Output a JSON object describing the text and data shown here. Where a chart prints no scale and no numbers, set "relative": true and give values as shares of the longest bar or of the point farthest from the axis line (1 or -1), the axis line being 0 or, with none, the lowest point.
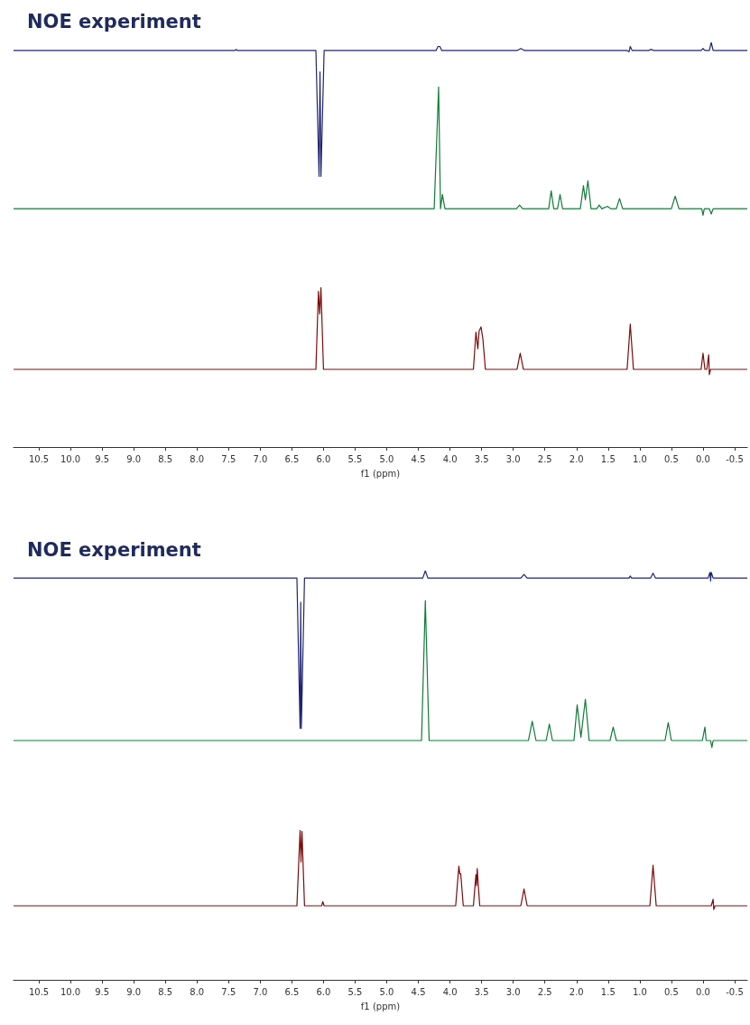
{
  "chart_data": [
    {
      "type": "line",
      "title": "NOE experiment",
      "relative": true,
      "xlim": [
        10.9,
        -0.7
      ],
      "xlabel": "f1 (ppm)",
      "xticks": [
        10.5,
        {
          "value": 10,
          "label": "10.0"
        },
        9.5,
        {
          "value": 9,
          "label": "9.0"
        },
        8.5,
        {
          "value": 8,
          "label": "8.0"
        },
        7.5,
        {
          "value": 7,
          "label": "7.0"
        },
        6.5,
        {
          "value": 6,
          "label": "6.0"
        },
        5.5,
        {
          "value": 5,
          "label": "5.0"
        },
        4.5,
        {
          "value": 4,
          "label": "4.0"
        },
        3.5,
        {
          "value": 3,
          "label": "3.0"
        },
        2.5,
        {
          "value": 2,
          "label": "2.0"
        },
        1.5,
        {
          "value": 1,
          "label": "1.0"
        },
        0.5,
        {
          "value": 0,
          "label": "0.0"
        },
        -0.5
      ],
      "tick_labels": "x",
      "series": [
        {
          "color": "#1f2470",
          "x": [
            10.9,
            7.4,
            7.38,
            7.36,
            6.12,
            6.07,
            6.055,
            6.04,
            5.99,
            4.22,
            4.19,
            4.16,
            4.13,
            2.94,
            2.88,
            2.82,
            1.2,
            1.17,
            1.15,
            1.12,
            0.86,
            0.82,
            0.78,
            0.03,
            0.0,
            -0.03,
            -0.1,
            -0.13,
            -0.16,
            -0.7
          ],
          "values": [
            0.98,
            0.98,
            0.983,
            0.98,
            0.98,
            0.669,
            0.927,
            0.669,
            0.98,
            0.98,
            0.99,
            0.99,
            0.98,
            0.98,
            0.985,
            0.98,
            0.98,
            0.977,
            0.99,
            0.98,
            0.98,
            0.983,
            0.98,
            0.98,
            0.985,
            0.98,
            0.98,
            1.0,
            0.98,
            0.98
          ]
        },
        {
          "color": "#127a3a",
          "x": [
            10.9,
            4.25,
            4.18,
            4.15,
            4.12,
            4.08,
            2.95,
            2.9,
            2.85,
            2.44,
            2.4,
            2.36,
            2.3,
            2.26,
            2.22,
            1.94,
            1.89,
            1.86,
            1.82,
            1.77,
            1.68,
            1.64,
            1.6,
            1.51,
            1.46,
            1.37,
            1.32,
            1.27,
            0.5,
            0.44,
            0.38,
            0.02,
            0.0,
            -0.02,
            -0.1,
            -0.13,
            -0.16,
            -0.7
          ],
          "values": [
            0.589,
            0.589,
            0.89,
            0.589,
            0.624,
            0.589,
            0.589,
            0.598,
            0.589,
            0.589,
            0.633,
            0.589,
            0.589,
            0.624,
            0.589,
            0.589,
            0.646,
            0.611,
            0.658,
            0.589,
            0.589,
            0.598,
            0.589,
            0.595,
            0.589,
            0.589,
            0.614,
            0.589,
            0.589,
            0.62,
            0.589,
            0.589,
            0.573,
            0.589,
            0.589,
            0.576,
            0.589,
            0.589
          ]
        },
        {
          "color": "#7a0c0c",
          "x": [
            10.9,
            6.12,
            6.08,
            6.06,
            6.04,
            6.0,
            3.63,
            3.59,
            3.56,
            3.54,
            3.51,
            3.48,
            3.44,
            2.94,
            2.89,
            2.84,
            1.2,
            1.15,
            1.1,
            0.03,
            0.0,
            -0.03,
            -0.06,
            -0.09,
            -0.1,
            -0.12,
            -0.7
          ],
          "values": [
            0.192,
            0.192,
            0.385,
            0.329,
            0.394,
            0.192,
            0.192,
            0.284,
            0.243,
            0.286,
            0.297,
            0.267,
            0.192,
            0.192,
            0.232,
            0.192,
            0.192,
            0.304,
            0.192,
            0.192,
            0.232,
            0.192,
            0.192,
            0.228,
            0.179,
            0.192,
            0.192
          ]
        }
      ]
    },
    {
      "type": "line",
      "title": "NOE experiment",
      "relative": true,
      "xlim": [
        10.9,
        -0.7
      ],
      "xlabel": "f1 (ppm)",
      "xticks": [
        10.5,
        {
          "value": 10,
          "label": "10.0"
        },
        9.5,
        {
          "value": 9,
          "label": "9.0"
        },
        8.5,
        {
          "value": 8,
          "label": "8.0"
        },
        7.5,
        {
          "value": 7,
          "label": "7.0"
        },
        6.5,
        {
          "value": 6,
          "label": "6.0"
        },
        5.5,
        {
          "value": 5,
          "label": "5.0"
        },
        4.5,
        {
          "value": 4,
          "label": "4.0"
        },
        3.5,
        {
          "value": 3,
          "label": "3.0"
        },
        2.5,
        {
          "value": 2,
          "label": "2.0"
        },
        1.5,
        {
          "value": 1,
          "label": "1.0"
        },
        0.5,
        {
          "value": 0,
          "label": "0.0"
        },
        -0.5
      ],
      "tick_labels": "x",
      "series": [
        {
          "color": "#1f2470",
          "x": [
            10.9,
            6.42,
            6.37,
            6.36,
            6.35,
            6.3,
            4.43,
            4.39,
            4.35,
            2.88,
            2.83,
            2.78,
            1.17,
            1.15,
            1.13,
            0.83,
            0.79,
            0.75,
            -0.08,
            -0.11,
            -0.12,
            -0.13,
            -0.16,
            -0.7
          ],
          "values": [
            0.982,
            0.982,
            0.615,
            0.923,
            0.615,
            0.982,
            0.982,
            1.0,
            0.982,
            0.982,
            0.991,
            0.982,
            0.982,
            0.987,
            0.982,
            0.982,
            0.994,
            0.982,
            0.982,
            0.996,
            0.975,
            0.996,
            0.982,
            0.982
          ]
        },
        {
          "color": "#127a3a",
          "x": [
            10.9,
            4.45,
            4.39,
            4.33,
            2.76,
            2.7,
            2.64,
            2.48,
            2.43,
            2.38,
            2.04,
            1.99,
            1.93,
            1.86,
            1.8,
            1.47,
            1.42,
            1.37,
            0.6,
            0.55,
            0.5,
            0.01,
            -0.03,
            -0.05,
            -0.12,
            -0.14,
            -0.16,
            -0.7
          ],
          "values": [
            0.585,
            0.585,
            0.927,
            0.585,
            0.585,
            0.632,
            0.585,
            0.585,
            0.625,
            0.585,
            0.585,
            0.672,
            0.593,
            0.686,
            0.585,
            0.585,
            0.618,
            0.585,
            0.585,
            0.629,
            0.585,
            0.585,
            0.618,
            0.585,
            0.585,
            0.568,
            0.585,
            0.585
          ]
        },
        {
          "color": "#7a0c0c",
          "x": [
            10.9,
            6.42,
            6.37,
            6.355,
            6.34,
            6.3,
            6.03,
            6.01,
            5.99,
            3.91,
            3.86,
            3.845,
            3.83,
            3.79,
            3.63,
            3.59,
            3.58,
            3.57,
            3.53,
            2.88,
            2.83,
            2.78,
            0.84,
            0.79,
            0.74,
            -0.13,
            -0.16,
            -0.17,
            -0.19,
            -0.7
          ],
          "values": [
            0.181,
            0.181,
            0.365,
            0.288,
            0.363,
            0.181,
            0.181,
            0.191,
            0.181,
            0.181,
            0.278,
            0.259,
            0.259,
            0.181,
            0.181,
            0.257,
            0.23,
            0.272,
            0.181,
            0.181,
            0.222,
            0.181,
            0.181,
            0.28,
            0.181,
            0.181,
            0.197,
            0.172,
            0.181,
            0.181
          ]
        }
      ]
    }
  ]
}
